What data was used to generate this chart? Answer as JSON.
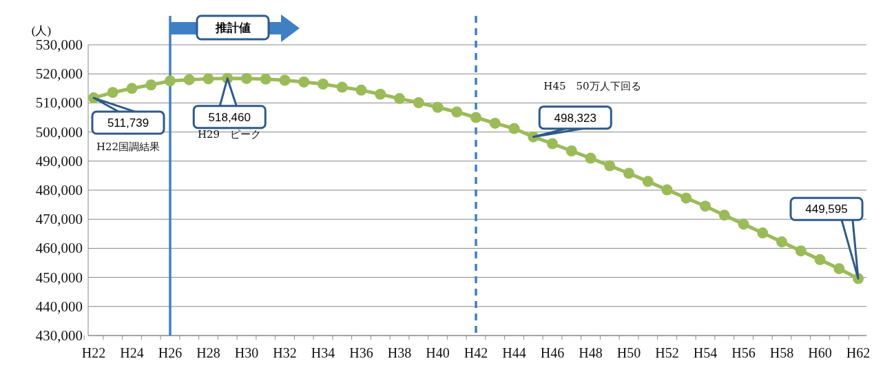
{
  "chart_data": {
    "type": "line",
    "ylabel": "(人)",
    "categories": [
      "H22",
      null,
      "H24",
      null,
      "H26",
      null,
      "H28",
      null,
      "H30",
      null,
      "H32",
      null,
      "H34",
      null,
      "H36",
      null,
      "H38",
      null,
      "H40",
      null,
      "H42",
      null,
      "H44",
      null,
      "H46",
      null,
      "H48",
      null,
      "H50",
      null,
      "H52",
      null,
      "H54",
      null,
      "H56",
      null,
      "H58",
      null,
      "H60",
      null,
      "H62"
    ],
    "series": [
      {
        "color": "#9bbb59",
        "values": [
          511739,
          513600,
          515000,
          516200,
          517600,
          518000,
          518300,
          518460,
          518400,
          518200,
          517800,
          517200,
          516500,
          515400,
          514400,
          513000,
          511500,
          510100,
          508500,
          506900,
          505000,
          503000,
          501200,
          498323,
          496000,
          493500,
          491000,
          488400,
          485800,
          483000,
          480100,
          477300,
          474500,
          471400,
          468300,
          465300,
          462200,
          459100,
          456100,
          453000,
          449595
        ],
        "value_labels": [
          "511,739",
          null,
          null,
          null,
          null,
          null,
          null,
          "518,460",
          null,
          null,
          null,
          null,
          null,
          null,
          null,
          null,
          null,
          null,
          null,
          null,
          null,
          null,
          null,
          "498,323",
          null,
          null,
          null,
          null,
          null,
          null,
          null,
          null,
          null,
          null,
          null,
          null,
          null,
          null,
          null,
          null,
          "449,595"
        ]
      }
    ],
    "ylim": [
      430000,
      530000
    ],
    "yticks": [
      {
        "value": 430000,
        "label": "430,000"
      },
      {
        "value": 440000,
        "label": "440,000"
      },
      {
        "value": 450000,
        "label": "450,000"
      },
      {
        "value": 460000,
        "label": "460,000"
      },
      {
        "value": 470000,
        "label": "470,000"
      },
      {
        "value": 480000,
        "label": "480,000"
      },
      {
        "value": 490000,
        "label": "490,000"
      },
      {
        "value": 500000,
        "label": "500,000"
      },
      {
        "value": 510000,
        "label": "510,000"
      },
      {
        "value": 520000,
        "label": "520,000"
      },
      {
        "value": 530000,
        "label": "530,000"
      }
    ],
    "grid": "y",
    "marker": "circle",
    "line_style": "solid",
    "ref_lines": [
      {
        "axis": "x",
        "value": "H26",
        "color": "#3f7fc4",
        "line_style": "solid"
      },
      {
        "axis": "x",
        "value": "H42",
        "color": "#3f7fc4",
        "line_style": "dashed"
      }
    ],
    "annotations": [
      "H22国調結果",
      "H29　ピーク",
      "H45　50万人下回る",
      "推計値"
    ]
  }
}
